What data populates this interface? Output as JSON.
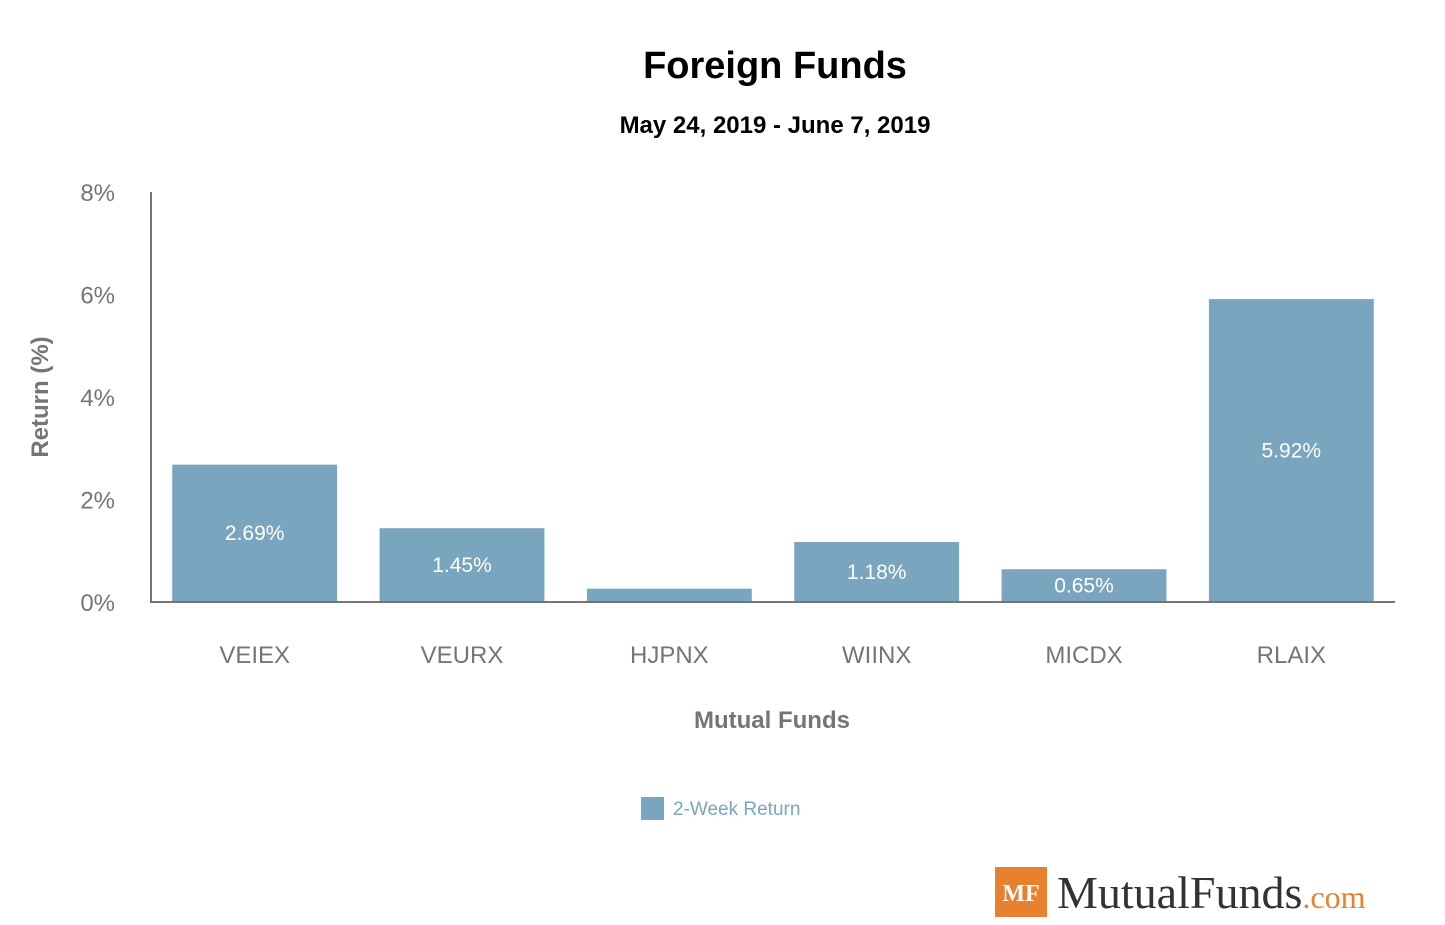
{
  "colors": {
    "bar": "#7aa5bf",
    "axis": "#757575",
    "logo_orange": "#e8812f",
    "logo_text": "#333333"
  },
  "chart_data": {
    "type": "bar",
    "title": "Foreign Funds",
    "subtitle": "May 24, 2019 - June 7, 2019",
    "xlabel": "Mutual Funds",
    "ylabel": "Return (%)",
    "categories": [
      "VEIEX",
      "VEURX",
      "HJPNX",
      "WIINX",
      "MICDX",
      "RLAIX"
    ],
    "series": [
      {
        "name": "2-Week Return",
        "values": [
          2.69,
          1.45,
          0.27,
          1.18,
          0.65,
          5.92
        ],
        "data_labels": [
          "2.69%",
          "1.45%",
          "",
          "1.18%",
          "0.65%",
          "5.92%"
        ]
      }
    ],
    "ylim": [
      0,
      8
    ],
    "yticks": [
      {
        "value": 0,
        "label": "0%"
      },
      {
        "value": 2,
        "label": "2%"
      },
      {
        "value": 4,
        "label": "4%"
      },
      {
        "value": 6,
        "label": "6%"
      },
      {
        "value": 8,
        "label": "8%"
      }
    ],
    "grid": false,
    "legend_position": "bottom"
  },
  "logo": {
    "badge": "MF",
    "name": "MutualFunds",
    "suffix": ".com"
  }
}
